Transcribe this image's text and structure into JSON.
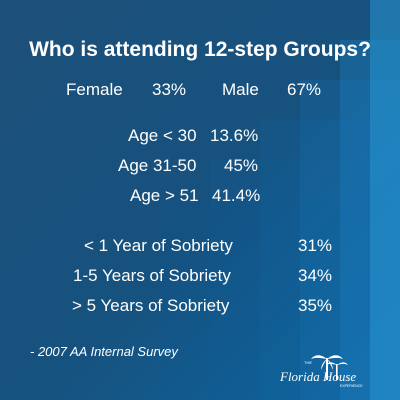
{
  "title": "Who is attending 12-step Groups?",
  "gender": {
    "female_label": "Female",
    "female_value": "33%",
    "male_label": "Male",
    "male_value": "67%"
  },
  "age": [
    {
      "label": "Age < 30",
      "value": "13.6%"
    },
    {
      "label": "Age 31-50",
      "value": "45%"
    },
    {
      "label": "Age > 51",
      "value": "41.4%"
    }
  ],
  "sobriety": [
    {
      "label": "< 1 Year of Sobriety",
      "value": "31%"
    },
    {
      "label": "1-5 Years of Sobriety",
      "value": "34%"
    },
    {
      "label": "> 5 Years of Sobriety",
      "value": "35%"
    }
  ],
  "source": "- 2007 AA Internal Survey",
  "logo": {
    "top_word": "THE",
    "brand": "Florida House",
    "tagline": "EXPERIENCE",
    "icon": "palm-tree-icon"
  },
  "colors": {
    "background_dark": "#1d4f7a",
    "background_light": "#0e6aa3",
    "text": "#ffffff"
  }
}
